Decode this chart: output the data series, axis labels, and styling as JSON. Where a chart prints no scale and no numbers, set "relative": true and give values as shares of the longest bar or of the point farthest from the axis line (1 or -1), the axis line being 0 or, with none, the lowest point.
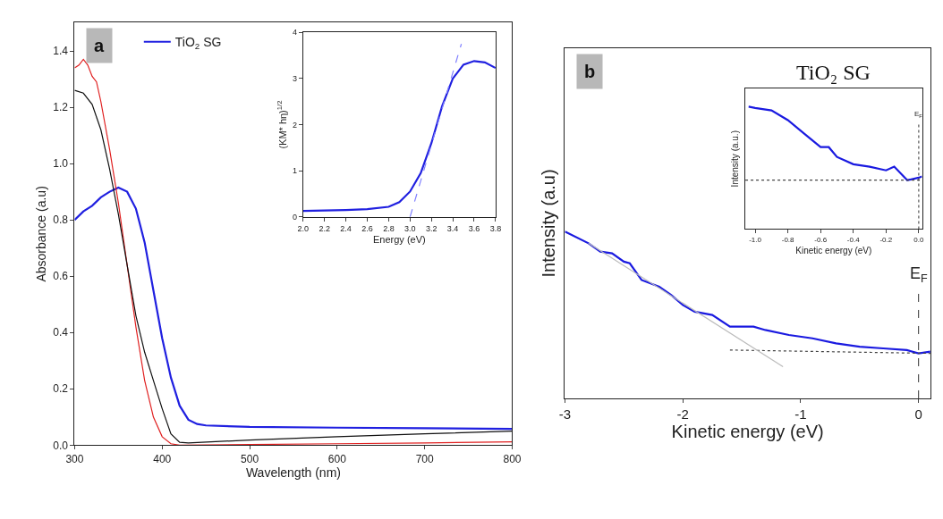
{
  "chart_data": [
    {
      "type": "line",
      "xlabel": "Wavelength (nm)",
      "ylabel": "Absorbance (a.u)",
      "annotations": [
        "a"
      ],
      "xlim": [
        300,
        800
      ],
      "xticks": [
        300,
        400,
        500,
        600,
        700,
        800
      ],
      "ylim": [
        0,
        1.5
      ],
      "yticks": [
        {
          "value": 0,
          "label": "0.0"
        },
        0.2,
        0.4,
        0.6,
        0.8,
        {
          "value": 1,
          "label": "1.0"
        },
        1.2,
        1.4
      ],
      "legend": "top left",
      "series": [
        {
          "name": "TiO$_{2}$ SG",
          "color": "#2020e0",
          "x": [
            300,
            310,
            320,
            330,
            340,
            350,
            360,
            370,
            380,
            390,
            400,
            410,
            420,
            430,
            440,
            450,
            500,
            600,
            700,
            800
          ],
          "values": [
            0.8,
            0.83,
            0.85,
            0.88,
            0.9,
            0.915,
            0.9,
            0.84,
            0.72,
            0.55,
            0.38,
            0.24,
            0.14,
            0.09,
            0.075,
            0.07,
            0.065,
            0.062,
            0.06,
            0.058
          ]
        },
        {
          "color": "#e02020",
          "x": [
            300,
            305,
            310,
            315,
            320,
            325,
            330,
            340,
            350,
            360,
            370,
            380,
            390,
            400,
            410,
            420,
            500,
            600,
            700,
            800
          ],
          "values": [
            1.34,
            1.35,
            1.37,
            1.35,
            1.31,
            1.29,
            1.22,
            1.05,
            0.86,
            0.64,
            0.42,
            0.23,
            0.1,
            0.03,
            0.005,
            0.0,
            0.002,
            0.005,
            0.008,
            0.012
          ]
        },
        {
          "color": "#101010",
          "x": [
            300,
            310,
            320,
            330,
            340,
            350,
            360,
            370,
            380,
            390,
            400,
            410,
            420,
            430,
            500,
            600,
            700,
            800
          ],
          "values": [
            1.26,
            1.25,
            1.21,
            1.12,
            0.98,
            0.82,
            0.64,
            0.46,
            0.33,
            0.23,
            0.13,
            0.04,
            0.01,
            0.008,
            0.018,
            0.03,
            0.04,
            0.05
          ]
        }
      ]
    },
    {
      "type": "line",
      "xlabel": "Energy (eV)",
      "ylabel": "(KM* hη)$^{1/2}$",
      "xlim": [
        2.0,
        3.8
      ],
      "xticks": [
        {
          "value": 2,
          "label": "2.0"
        },
        2.2,
        2.4,
        2.6,
        2.8,
        {
          "value": 3,
          "label": "3.0"
        },
        3.2,
        3.4,
        3.6,
        3.8
      ],
      "ylim": [
        0,
        4
      ],
      "yticks": [
        0,
        1,
        2,
        3,
        4
      ],
      "series": [
        {
          "color": "#2020e0",
          "x": [
            2.0,
            2.2,
            2.4,
            2.6,
            2.8,
            2.9,
            3.0,
            3.1,
            3.2,
            3.3,
            3.4,
            3.5,
            3.6,
            3.7,
            3.8
          ],
          "values": [
            0.13,
            0.14,
            0.15,
            0.17,
            0.22,
            0.32,
            0.55,
            0.95,
            1.6,
            2.4,
            3.0,
            3.3,
            3.38,
            3.35,
            3.23
          ]
        },
        {
          "type": "line",
          "line_style": "dashed",
          "color": "#8080ff",
          "x": [
            3.0,
            3.48
          ],
          "values": [
            0,
            3.75
          ]
        }
      ]
    },
    {
      "type": "line",
      "relative": true,
      "xlabel": "Kinetic energy (eV)",
      "ylabel": "Intensity (a.u)",
      "annotations": [
        "b"
      ],
      "xlim": [
        -3,
        0.1
      ],
      "xticks": [
        -3,
        -2,
        -1,
        0
      ],
      "tick_labels": "x",
      "ref_lines": [
        {
          "axis": "x",
          "value": 0,
          "label": "E$_{F}$",
          "line_style": "dashed",
          "color": "#333333"
        }
      ],
      "series": [
        {
          "color": "#1a1ae0",
          "x": [
            -3,
            -2.8,
            -2.7,
            -2.6,
            -2.5,
            -2.45,
            -2.35,
            -2.2,
            -2.1,
            -2.0,
            -1.9,
            -1.75,
            -1.6,
            -1.4,
            -1.3,
            -1.1,
            -0.9,
            -0.7,
            -0.5,
            -0.3,
            -0.1,
            0,
            0.1
          ],
          "values": [
            1.0,
            0.93,
            0.88,
            0.87,
            0.82,
            0.81,
            0.71,
            0.67,
            0.62,
            0.56,
            0.52,
            0.5,
            0.43,
            0.43,
            0.41,
            0.38,
            0.36,
            0.33,
            0.31,
            0.3,
            0.29,
            0.27,
            0.28
          ]
        },
        {
          "type": "line",
          "line_style": "dotted",
          "color": "#444444",
          "x": [
            -1.6,
            0.1
          ],
          "values": [
            0.29,
            0.27
          ]
        },
        {
          "type": "line",
          "color": "#bbbbbb",
          "x": [
            -2.8,
            -1.15
          ],
          "values": [
            0.93,
            0.19
          ]
        }
      ]
    },
    {
      "type": "line",
      "relative": true,
      "title": "TiO₂ SG",
      "xlabel": "Kinetic energy (eV)",
      "ylabel": "Intensity (a.u.)",
      "xlim": [
        -1.06,
        0.02
      ],
      "xticks": [
        {
          "value": -1,
          "label": "-1.0"
        },
        -0.8,
        -0.6,
        -0.4,
        -0.2,
        {
          "value": 0,
          "label": "0.0"
        }
      ],
      "tick_labels": "x",
      "ref_lines": [
        {
          "axis": "x",
          "value": 0,
          "label": "E$_{F}$",
          "line_style": "dotted",
          "color": "#333333"
        }
      ],
      "series": [
        {
          "color": "#1a1ae0",
          "x": [
            -1.04,
            -1.0,
            -0.9,
            -0.8,
            -0.7,
            -0.6,
            -0.55,
            -0.5,
            -0.4,
            -0.3,
            -0.2,
            -0.15,
            -0.07,
            0,
            0.02
          ],
          "values": [
            1.0,
            0.99,
            0.97,
            0.89,
            0.78,
            0.67,
            0.67,
            0.59,
            0.53,
            0.51,
            0.48,
            0.51,
            0.4,
            0.42,
            0.43
          ]
        },
        {
          "type": "line",
          "line_style": "dotted",
          "color": "#444444",
          "x": [
            -1.06,
            0.02
          ],
          "values": [
            0.4,
            0.4
          ]
        }
      ]
    }
  ]
}
